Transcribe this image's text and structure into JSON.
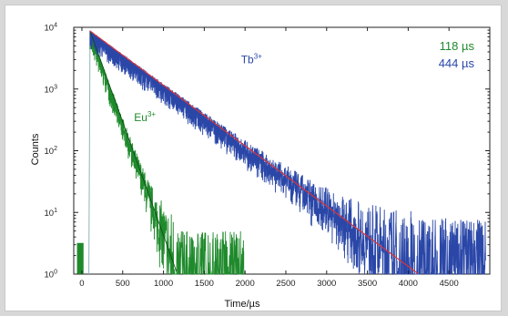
{
  "chart_data": {
    "type": "line",
    "xlabel": "Time/µs",
    "ylabel": "Counts",
    "xlim": [
      -100,
      5000
    ],
    "ylim": [
      1,
      10000
    ],
    "y_scale": "log",
    "x_ticks": [
      0,
      500,
      1000,
      1500,
      2000,
      2500,
      3000,
      3500,
      4000,
      4500
    ],
    "y_ticks": [
      {
        "value": 1,
        "base": "10",
        "exp": "0"
      },
      {
        "value": 10,
        "base": "10",
        "exp": "1"
      },
      {
        "value": 100,
        "base": "10",
        "exp": "2"
      },
      {
        "value": 1000,
        "base": "10",
        "exp": "3"
      },
      {
        "value": 10000,
        "base": "10",
        "exp": "4"
      }
    ],
    "grid": false,
    "series": [
      {
        "name": "Tb",
        "superscript": "3+",
        "color": "#2a47a8",
        "lifetime_us": 444,
        "noise_floor_until_us": 3350,
        "x": [
          100,
          500,
          1000,
          1500,
          2000,
          2500,
          3000,
          3500,
          4000,
          4500,
          4950
        ],
        "y": [
          8700,
          3500,
          1000,
          330,
          100,
          30,
          10,
          3.3,
          1,
          1,
          1
        ]
      },
      {
        "name": "Eu",
        "superscript": "3+",
        "color": "#1f8a2c",
        "lifetime_us": 118,
        "noise_floor_until_us": 2000,
        "x": [
          100,
          200,
          300,
          400,
          500,
          600,
          700,
          800,
          900,
          1000,
          1500,
          2000
        ],
        "y": [
          8700,
          3800,
          1600,
          700,
          300,
          130,
          55,
          23,
          10,
          4.5,
          2,
          2
        ]
      }
    ],
    "fit_color": "#d8343c",
    "rise_color": "#8fb3b8",
    "lifetime_labels": [
      {
        "text": "118 µs",
        "color": "#1f8a2c"
      },
      {
        "text": "444 µs",
        "color": "#2a47a8"
      }
    ]
  }
}
